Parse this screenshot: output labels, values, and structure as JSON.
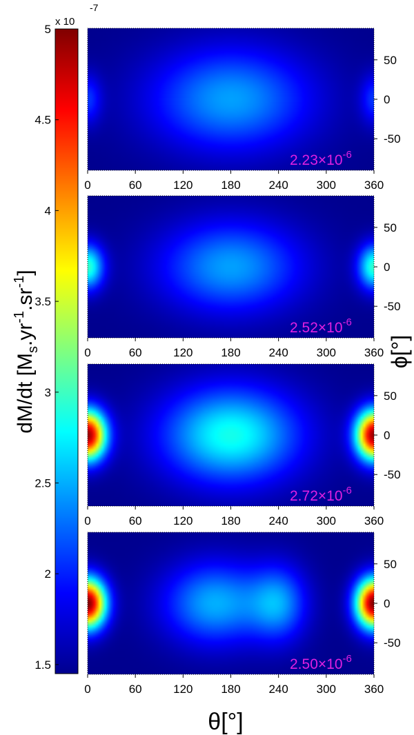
{
  "chart_data": {
    "type": "heatmap",
    "colorbar": {
      "label_main": "dM/dt [M",
      "label_sub": "s",
      "label_mid": ".yr",
      "label_sup1": "-1",
      "label_mid2": ".sr",
      "label_sup2": "-1",
      "label_end": "]",
      "multiplier_text": "x 10",
      "multiplier_exp": "-7",
      "range": [
        1.45,
        5.0
      ],
      "ticks": [
        "1.5",
        "2",
        "2.5",
        "3",
        "3.5",
        "4",
        "4.5",
        "5"
      ],
      "colormap": "jet"
    },
    "xlabel": "θ[°]",
    "ylabel": "ϕ[°]",
    "xlim": [
      0,
      360
    ],
    "ylim": [
      -90,
      90
    ],
    "x_ticks": [
      "0",
      "60",
      "120",
      "180",
      "240",
      "300",
      "360"
    ],
    "y_ticks": [
      "50",
      "0",
      "-50"
    ],
    "panels": [
      {
        "annotation": "2.23×10",
        "annotation_exp": "-6",
        "blobs": [
          {
            "theta": 180,
            "phi": 0,
            "sig_theta": 70,
            "sig_phi": 45,
            "value": 0.95
          },
          {
            "theta": 0,
            "phi": 0,
            "sig_theta": 12,
            "sig_phi": 22,
            "value": 0.55
          },
          {
            "theta": 360,
            "phi": 0,
            "sig_theta": 12,
            "sig_phi": 22,
            "value": 0.55
          }
        ],
        "floor": 1.5
      },
      {
        "annotation": "2.52×10",
        "annotation_exp": "-6",
        "blobs": [
          {
            "theta": 180,
            "phi": 0,
            "sig_theta": 62,
            "sig_phi": 40,
            "value": 0.95
          },
          {
            "theta": 0,
            "phi": 0,
            "sig_theta": 14,
            "sig_phi": 20,
            "value": 1.45
          },
          {
            "theta": 360,
            "phi": 0,
            "sig_theta": 14,
            "sig_phi": 20,
            "value": 1.45
          }
        ],
        "floor": 1.5
      },
      {
        "annotation": "2.72×10",
        "annotation_exp": "-6",
        "blobs": [
          {
            "theta": 180,
            "phi": 0,
            "sig_theta": 60,
            "sig_phi": 42,
            "value": 1.35
          },
          {
            "theta": 0,
            "phi": 0,
            "sig_theta": 16,
            "sig_phi": 22,
            "value": 3.4
          },
          {
            "theta": 360,
            "phi": 0,
            "sig_theta": 16,
            "sig_phi": 22,
            "value": 3.4
          }
        ],
        "floor": 1.5
      },
      {
        "annotation": "2.50×10",
        "annotation_exp": "-6",
        "blobs": [
          {
            "theta": 160,
            "phi": 0,
            "sig_theta": 45,
            "sig_phi": 36,
            "value": 1.0
          },
          {
            "theta": 240,
            "phi": 0,
            "sig_theta": 25,
            "sig_phi": 33,
            "value": 0.85
          },
          {
            "theta": 0,
            "phi": 0,
            "sig_theta": 16,
            "sig_phi": 22,
            "value": 3.5
          },
          {
            "theta": 360,
            "phi": 0,
            "sig_theta": 16,
            "sig_phi": 22,
            "value": 3.5
          }
        ],
        "floor": 1.5
      }
    ]
  }
}
